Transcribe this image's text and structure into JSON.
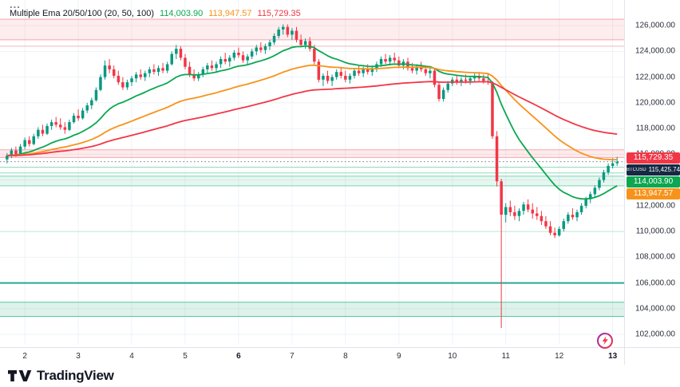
{
  "legend": {
    "menu_icon": "...",
    "title": "Multiple Ema 20/50/100 (20, 50, 100)",
    "values": [
      {
        "text": "114,003.90",
        "color": "#0ca750"
      },
      {
        "text": "113,947.57",
        "color": "#f7931a"
      },
      {
        "text": "115,729.35",
        "color": "#f23645"
      }
    ]
  },
  "price_tags": [
    {
      "text": "115,729.35",
      "value": 115729.35,
      "bg": "#f23645"
    },
    {
      "prefix": "BTCUSD",
      "text": "115,425.74",
      "value": 115425.74,
      "bg": "#152a43"
    },
    {
      "text": "114,003.90",
      "value": 114003.9,
      "bg": "#0ca750"
    },
    {
      "text": "113,947.57",
      "value": 113947.57,
      "bg": "#f7931a"
    }
  ],
  "footer": {
    "brand": "TradingView"
  },
  "chart_data": {
    "type": "candlestick",
    "symbol": "BTCUSD",
    "title": "Multiple Ema 20/50/100 (20, 50, 100)",
    "colors": {
      "up": "#089981",
      "down": "#f23645",
      "grid": "#eef2f7",
      "last_price_line": "#787b86"
    },
    "price_axis": {
      "min": 101200,
      "max": 127000,
      "ticks": [
        {
          "value": 126000,
          "label": "126,000.00"
        },
        {
          "value": 124000,
          "label": "124,000.00"
        },
        {
          "value": 122000,
          "label": "122,000.00"
        },
        {
          "value": 120000,
          "label": "120,000.00"
        },
        {
          "value": 118000,
          "label": "118,000.00"
        },
        {
          "value": 116000,
          "label": "116,000.00"
        },
        {
          "value": 114000,
          "label": "114,000.00"
        },
        {
          "value": 112000,
          "label": "112,000.00"
        },
        {
          "value": 110000,
          "label": "110,000.00"
        },
        {
          "value": 108000,
          "label": "108,000.00"
        },
        {
          "value": 106000,
          "label": "106,000.00"
        },
        {
          "value": 104000,
          "label": "104,000.00"
        },
        {
          "value": 102000,
          "label": "102,000.00"
        }
      ]
    },
    "days": [
      {
        "label": "2",
        "bold": false
      },
      {
        "label": "3",
        "bold": false
      },
      {
        "label": "4",
        "bold": false
      },
      {
        "label": "5",
        "bold": false
      },
      {
        "label": "6",
        "bold": true
      },
      {
        "label": "7",
        "bold": false
      },
      {
        "label": "8",
        "bold": false
      },
      {
        "label": "9",
        "bold": false
      },
      {
        "label": "10",
        "bold": false
      },
      {
        "label": "11",
        "bold": false
      },
      {
        "label": "12",
        "bold": false
      },
      {
        "label": "13",
        "bold": true
      }
    ],
    "emas": [
      {
        "name": "EMA 20",
        "period": 20,
        "color": "#0ca750",
        "last_label": "114,003.90"
      },
      {
        "name": "EMA 50",
        "period": 50,
        "color": "#f7931a",
        "last_label": "113,947.57"
      },
      {
        "name": "EMA 100",
        "period": 100,
        "color": "#f23645",
        "last_label": "115,729.35"
      }
    ],
    "zones": [
      {
        "from": 124900,
        "to": 126500,
        "fill": "rgba(242,54,69,0.09)",
        "border": "#f3a6ae"
      },
      {
        "from": 115750,
        "to": 116350,
        "fill": "rgba(242,54,69,0.10)",
        "border": "#f3a6ae"
      },
      {
        "from": 113550,
        "to": 114300,
        "fill": "rgba(18,166,111,0.10)",
        "border": "#7ed6b5"
      },
      {
        "from": 103400,
        "to": 104500,
        "fill": "rgba(18,166,111,0.14)",
        "border": "#57c7a0"
      }
    ],
    "hlines": [
      {
        "value": 124400,
        "color": "#f4b8bd",
        "width": 1
      },
      {
        "value": 115000,
        "color": "#8fdcb8",
        "width": 1
      },
      {
        "value": 114550,
        "color": "#8fdcb8",
        "width": 1
      },
      {
        "value": 110000,
        "color": "#b9ecd2",
        "width": 1
      },
      {
        "value": 106000,
        "color": "#2aa794",
        "width": 2
      }
    ],
    "last_price": {
      "value": 115425.74
    },
    "candles": [
      [
        115600,
        116100,
        115300,
        115900
      ],
      [
        115900,
        116500,
        115700,
        116300
      ],
      [
        116300,
        116600,
        115800,
        116000
      ],
      [
        116000,
        116800,
        115900,
        116600
      ],
      [
        116600,
        117300,
        116400,
        117100
      ],
      [
        117100,
        117400,
        116600,
        116800
      ],
      [
        116800,
        117600,
        116700,
        117400
      ],
      [
        117400,
        118100,
        117200,
        117900
      ],
      [
        117900,
        118300,
        117400,
        117600
      ],
      [
        117600,
        118400,
        117500,
        118200
      ],
      [
        118200,
        118700,
        117900,
        118500
      ],
      [
        118500,
        118900,
        118100,
        118300
      ],
      [
        118300,
        118800,
        117900,
        118100
      ],
      [
        118100,
        118500,
        117600,
        117900
      ],
      [
        117900,
        118700,
        117800,
        118500
      ],
      [
        118500,
        119200,
        118400,
        119000
      ],
      [
        119000,
        119500,
        118600,
        118800
      ],
      [
        118800,
        119600,
        118700,
        119400
      ],
      [
        119400,
        120000,
        119200,
        119800
      ],
      [
        119800,
        120400,
        119500,
        120200
      ],
      [
        120200,
        121200,
        120100,
        121000
      ],
      [
        121000,
        122200,
        120900,
        122000
      ],
      [
        122000,
        123300,
        121800,
        122900
      ],
      [
        122900,
        123400,
        122300,
        122600
      ],
      [
        122600,
        122900,
        121900,
        122100
      ],
      [
        122100,
        122500,
        121400,
        121600
      ],
      [
        121600,
        122000,
        121000,
        121200
      ],
      [
        121200,
        121800,
        121000,
        121600
      ],
      [
        121600,
        122100,
        121300,
        121900
      ],
      [
        121900,
        122400,
        121600,
        122200
      ],
      [
        122200,
        122600,
        121800,
        122000
      ],
      [
        122000,
        122500,
        121700,
        122300
      ],
      [
        122300,
        122800,
        122000,
        122600
      ],
      [
        122600,
        123000,
        122200,
        122400
      ],
      [
        122400,
        122900,
        122100,
        122700
      ],
      [
        122700,
        123100,
        122300,
        122500
      ],
      [
        122500,
        123200,
        122300,
        123000
      ],
      [
        123000,
        124000,
        122900,
        123800
      ],
      [
        123800,
        124500,
        123400,
        124200
      ],
      [
        124200,
        124400,
        123300,
        123500
      ],
      [
        123500,
        123800,
        122600,
        122800
      ],
      [
        122800,
        123200,
        122000,
        122200
      ],
      [
        122200,
        122600,
        121700,
        121900
      ],
      [
        121900,
        122400,
        121700,
        122200
      ],
      [
        122200,
        122800,
        122000,
        122600
      ],
      [
        122600,
        123100,
        122300,
        122900
      ],
      [
        122900,
        123300,
        122500,
        122700
      ],
      [
        122700,
        123200,
        122400,
        123000
      ],
      [
        123000,
        123600,
        122700,
        123400
      ],
      [
        123400,
        123900,
        123000,
        123200
      ],
      [
        123200,
        123700,
        122800,
        123500
      ],
      [
        123500,
        124100,
        123300,
        123900
      ],
      [
        123900,
        124300,
        123500,
        123700
      ],
      [
        123700,
        124000,
        123100,
        123300
      ],
      [
        123300,
        123800,
        123000,
        123600
      ],
      [
        123600,
        124200,
        123400,
        124000
      ],
      [
        124000,
        124500,
        123700,
        124300
      ],
      [
        124300,
        124700,
        123900,
        124100
      ],
      [
        124100,
        124600,
        123800,
        124400
      ],
      [
        124400,
        124900,
        124100,
        124700
      ],
      [
        124700,
        125400,
        124500,
        125200
      ],
      [
        125200,
        125900,
        125000,
        125700
      ],
      [
        125700,
        126100,
        125300,
        125900
      ],
      [
        125900,
        126100,
        125100,
        125300
      ],
      [
        125300,
        125800,
        124900,
        125600
      ],
      [
        125600,
        125900,
        124700,
        124900
      ],
      [
        124900,
        125300,
        124300,
        124500
      ],
      [
        124500,
        125000,
        124200,
        124800
      ],
      [
        124800,
        125100,
        124000,
        124200
      ],
      [
        124200,
        124500,
        123000,
        123200
      ],
      [
        123200,
        123400,
        121600,
        121800
      ],
      [
        121800,
        122300,
        121300,
        122100
      ],
      [
        122100,
        122500,
        121500,
        121700
      ],
      [
        121700,
        122200,
        121300,
        122000
      ],
      [
        122000,
        122600,
        121800,
        122400
      ],
      [
        122400,
        122700,
        121900,
        122100
      ],
      [
        122100,
        122500,
        121600,
        121800
      ],
      [
        121800,
        122300,
        121500,
        122100
      ],
      [
        122100,
        122700,
        121900,
        122500
      ],
      [
        122500,
        122900,
        122100,
        122300
      ],
      [
        122300,
        122800,
        122000,
        122600
      ],
      [
        122600,
        123000,
        122200,
        122400
      ],
      [
        122400,
        122900,
        122100,
        122700
      ],
      [
        122700,
        123200,
        122400,
        123000
      ],
      [
        123000,
        123600,
        122800,
        123400
      ],
      [
        123400,
        123800,
        123000,
        123200
      ],
      [
        123200,
        123700,
        122900,
        123500
      ],
      [
        123500,
        123900,
        123100,
        123300
      ],
      [
        123300,
        123600,
        122700,
        122900
      ],
      [
        122900,
        123400,
        122600,
        123200
      ],
      [
        123200,
        123500,
        122500,
        122700
      ],
      [
        122700,
        123100,
        122300,
        122500
      ],
      [
        122500,
        123000,
        122200,
        122800
      ],
      [
        122800,
        123200,
        122400,
        122600
      ],
      [
        122600,
        122900,
        122100,
        122300
      ],
      [
        122300,
        122700,
        121900,
        122500
      ],
      [
        122500,
        122700,
        121200,
        121400
      ],
      [
        121400,
        121600,
        120100,
        120300
      ],
      [
        120300,
        121200,
        120100,
        121000
      ],
      [
        121000,
        121700,
        120800,
        121500
      ],
      [
        121500,
        122000,
        121300,
        121800
      ],
      [
        121800,
        122100,
        121400,
        121600
      ],
      [
        121600,
        122000,
        121300,
        121800
      ],
      [
        121800,
        122200,
        121500,
        121700
      ],
      [
        121700,
        122100,
        121400,
        121900
      ],
      [
        121900,
        122300,
        121600,
        122100
      ],
      [
        122100,
        122400,
        121700,
        121900
      ],
      [
        121900,
        122200,
        121500,
        121700
      ],
      [
        121700,
        122300,
        121400,
        121600
      ],
      [
        121600,
        121700,
        117200,
        117400
      ],
      [
        117400,
        117800,
        113500,
        113900
      ],
      [
        113900,
        114100,
        102500,
        111300
      ],
      [
        111300,
        112200,
        110700,
        111900
      ],
      [
        111900,
        112400,
        111200,
        111500
      ],
      [
        111500,
        112000,
        110900,
        111200
      ],
      [
        111200,
        111800,
        110800,
        111600
      ],
      [
        111600,
        112300,
        111300,
        112100
      ],
      [
        112100,
        112500,
        111500,
        111700
      ],
      [
        111700,
        112200,
        111000,
        111400
      ],
      [
        111400,
        111900,
        110900,
        111200
      ],
      [
        111200,
        111600,
        110500,
        110800
      ],
      [
        110800,
        111200,
        110200,
        110400
      ],
      [
        110400,
        110800,
        109700,
        109900
      ],
      [
        109900,
        110300,
        109500,
        109700
      ],
      [
        109700,
        110400,
        109600,
        110200
      ],
      [
        110200,
        111000,
        110000,
        110800
      ],
      [
        110800,
        111500,
        110600,
        111300
      ],
      [
        111300,
        111800,
        110900,
        111100
      ],
      [
        111100,
        111700,
        110800,
        111500
      ],
      [
        111500,
        112200,
        111300,
        112000
      ],
      [
        112000,
        112700,
        111800,
        112500
      ],
      [
        112500,
        113100,
        112200,
        112900
      ],
      [
        112900,
        113600,
        112700,
        113400
      ],
      [
        113400,
        114200,
        113200,
        114000
      ],
      [
        114000,
        114800,
        113800,
        114600
      ],
      [
        114600,
        115300,
        114400,
        115100
      ],
      [
        115100,
        115700,
        114900,
        115300
      ],
      [
        115300,
        115800,
        115100,
        115426
      ]
    ]
  }
}
